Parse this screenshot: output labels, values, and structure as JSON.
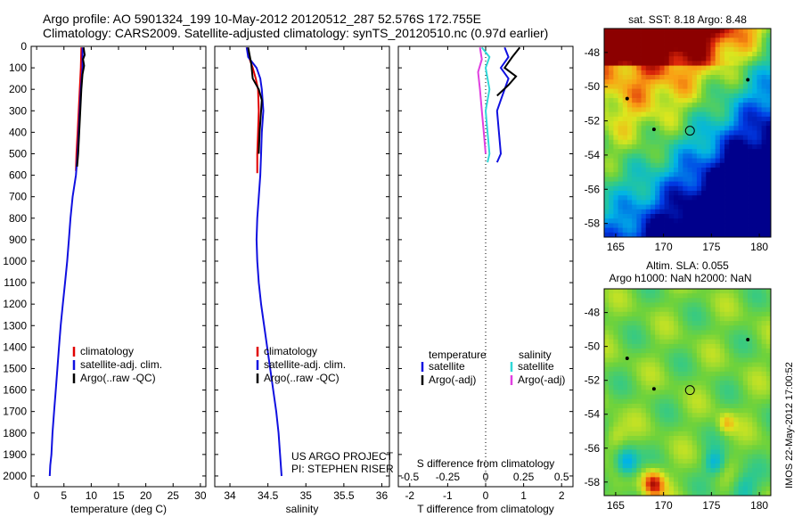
{
  "header": {
    "line1": "Argo profile: AO 5901324_199 10-May-2012 20120512_287 52.576S 172.755E",
    "line2": "Climatology: CARS2009. Satellite-adjusted climatology: synTS_20120510.nc (0.97d earlier)"
  },
  "colors": {
    "climatology": "#e00000",
    "satellite": "#1010e0",
    "argo": "#000000",
    "salinity_satellite": "#30d8d8",
    "salinity_argo": "#e040e0"
  },
  "chart_data": [
    {
      "type": "line",
      "xlabel": "temperature (deg C)",
      "xlim": [
        -1,
        31
      ],
      "xticks": [
        0,
        5,
        10,
        15,
        20,
        25,
        30
      ],
      "ylim": [
        0,
        2050
      ],
      "yticks": [
        0,
        100,
        200,
        300,
        400,
        500,
        600,
        700,
        800,
        900,
        1000,
        1100,
        1200,
        1300,
        1400,
        1500,
        1600,
        1700,
        1800,
        1900,
        2000
      ],
      "legend": [
        "climatology",
        "satellite-adj. clim.",
        "Argo(..raw -QC)"
      ],
      "series": [
        {
          "name": "climatology",
          "color_key": "climatology",
          "points": [
            [
              8.2,
              5
            ],
            [
              8.1,
              100
            ],
            [
              7.9,
              200
            ],
            [
              7.7,
              300
            ],
            [
              7.5,
              400
            ],
            [
              7.3,
              500
            ],
            [
              7.2,
              580
            ]
          ]
        },
        {
          "name": "satellite-adj. clim.",
          "color_key": "satellite",
          "points": [
            [
              8.4,
              5
            ],
            [
              8.4,
              100
            ],
            [
              8.1,
              200
            ],
            [
              7.9,
              300
            ],
            [
              7.7,
              400
            ],
            [
              7.5,
              500
            ],
            [
              7.2,
              600
            ],
            [
              6.6,
              700
            ],
            [
              6.2,
              800
            ],
            [
              5.9,
              900
            ],
            [
              5.6,
              1000
            ],
            [
              5.2,
              1100
            ],
            [
              4.8,
              1200
            ],
            [
              4.4,
              1300
            ],
            [
              4.1,
              1400
            ],
            [
              3.8,
              1500
            ],
            [
              3.5,
              1600
            ],
            [
              3.2,
              1700
            ],
            [
              2.9,
              1800
            ],
            [
              2.7,
              1900
            ],
            [
              2.5,
              1950
            ],
            [
              2.4,
              2000
            ]
          ]
        },
        {
          "name": "Argo(..raw -QC)",
          "color_key": "argo",
          "points": [
            [
              8.6,
              5
            ],
            [
              8.8,
              40
            ],
            [
              8.5,
              60
            ],
            [
              8.7,
              90
            ],
            [
              8.4,
              130
            ],
            [
              8.2,
              200
            ],
            [
              8.0,
              300
            ],
            [
              7.8,
              400
            ],
            [
              7.6,
              500
            ],
            [
              7.4,
              560
            ]
          ]
        }
      ]
    },
    {
      "type": "line",
      "xlabel": "salinity",
      "xlim": [
        33.8,
        36.1
      ],
      "xticks": [
        34,
        34.5,
        35,
        35.5,
        36
      ],
      "ylim": [
        0,
        2050
      ],
      "legend": [
        "climatology",
        "satellite-adj. clim.",
        "Argo(..raw -QC)"
      ],
      "series": [
        {
          "name": "climatology",
          "color_key": "climatology",
          "points": [
            [
              34.22,
              5
            ],
            [
              34.25,
              50
            ],
            [
              34.3,
              100
            ],
            [
              34.34,
              150
            ],
            [
              34.37,
              200
            ],
            [
              34.38,
              300
            ],
            [
              34.37,
              400
            ],
            [
              34.36,
              500
            ],
            [
              34.36,
              590
            ]
          ]
        },
        {
          "name": "satellite-adj. clim.",
          "color_key": "satellite",
          "points": [
            [
              34.22,
              5
            ],
            [
              34.24,
              50
            ],
            [
              34.35,
              100
            ],
            [
              34.4,
              150
            ],
            [
              34.42,
              200
            ],
            [
              34.44,
              300
            ],
            [
              34.42,
              400
            ],
            [
              34.41,
              500
            ],
            [
              34.4,
              600
            ],
            [
              34.38,
              700
            ],
            [
              34.36,
              800
            ],
            [
              34.35,
              900
            ],
            [
              34.36,
              1000
            ],
            [
              34.38,
              1100
            ],
            [
              34.41,
              1200
            ],
            [
              34.45,
              1300
            ],
            [
              34.49,
              1400
            ],
            [
              34.53,
              1500
            ],
            [
              34.57,
              1600
            ],
            [
              34.61,
              1700
            ],
            [
              34.64,
              1800
            ],
            [
              34.66,
              1900
            ],
            [
              34.68,
              2000
            ]
          ]
        },
        {
          "name": "Argo(..raw -QC)",
          "color_key": "argo",
          "points": [
            [
              34.24,
              5
            ],
            [
              34.28,
              80
            ],
            [
              34.3,
              150
            ],
            [
              34.38,
              200
            ],
            [
              34.42,
              250
            ],
            [
              34.41,
              300
            ],
            [
              34.39,
              400
            ],
            [
              34.38,
              500
            ]
          ]
        }
      ]
    },
    {
      "type": "line",
      "xlabel": "T difference from climatology",
      "xlabel2": "S difference from climatology",
      "xlim": [
        -2.3,
        2.3
      ],
      "xticks": [
        -2,
        -1,
        0,
        1,
        2
      ],
      "xticklabels": [
        "-2",
        "-1",
        "0",
        "1",
        "2"
      ],
      "xticks2": [
        -2,
        -1,
        0,
        1,
        2
      ],
      "xticklabels2": [
        "-0.5",
        "-0.25",
        "0",
        "0.25",
        "0.5"
      ],
      "ylim": [
        0,
        2050
      ],
      "legend_headers": [
        "temperature",
        "salinity"
      ],
      "legend": [
        "satellite",
        "Argo(-adj)",
        "satellite",
        "Argo(-adj)"
      ],
      "series": [
        {
          "name": "satellite",
          "color_key": "satellite",
          "points": [
            [
              0.5,
              5
            ],
            [
              0.6,
              50
            ],
            [
              0.4,
              100
            ],
            [
              0.6,
              150
            ],
            [
              0.5,
              200
            ],
            [
              0.4,
              250
            ],
            [
              0.3,
              300
            ],
            [
              0.35,
              400
            ],
            [
              0.4,
              500
            ],
            [
              0.3,
              540
            ]
          ]
        },
        {
          "name": "Argo(-adj)",
          "color_key": "argo",
          "points": [
            [
              0.9,
              5
            ],
            [
              0.7,
              50
            ],
            [
              0.5,
              100
            ],
            [
              0.8,
              140
            ],
            [
              0.6,
              180
            ],
            [
              0.3,
              230
            ]
          ]
        },
        {
          "name": "satellite",
          "color_key": "salinity_satellite",
          "points": [
            [
              -0.1,
              5
            ],
            [
              0.1,
              50
            ],
            [
              0.0,
              100
            ],
            [
              0.1,
              200
            ],
            [
              0.0,
              300
            ],
            [
              0.05,
              400
            ],
            [
              0.1,
              500
            ],
            [
              0.05,
              540
            ]
          ]
        },
        {
          "name": "Argo(-adj)",
          "color_key": "salinity_argo",
          "points": [
            [
              -0.15,
              5
            ],
            [
              -0.1,
              60
            ],
            [
              -0.2,
              120
            ],
            [
              -0.15,
              200
            ],
            [
              -0.1,
              300
            ],
            [
              -0.05,
              400
            ],
            [
              0.0,
              500
            ]
          ]
        }
      ]
    },
    {
      "type": "heatmap",
      "title": "sat. SST: 8.18 Argo: 8.48",
      "xticks": [
        165,
        170,
        175,
        180
      ],
      "yticks": [
        -48,
        -50,
        -52,
        -54,
        -56,
        -58
      ],
      "xlim": [
        163.8,
        181.2
      ],
      "ylim": [
        -58.8,
        -46.6
      ],
      "marker": [
        172.755,
        -52.576
      ],
      "islands": [
        [
          166.2,
          -50.7
        ],
        [
          169.0,
          -52.5
        ],
        [
          178.8,
          -49.6
        ]
      ]
    },
    {
      "type": "heatmap",
      "title": "Altim. SLA: 0.055",
      "subtitle": "Argo h1000: NaN h2000: NaN",
      "xticks": [
        165,
        170,
        175,
        180
      ],
      "yticks": [
        -48,
        -50,
        -52,
        -54,
        -56,
        -58
      ],
      "xlim": [
        163.8,
        181.2
      ],
      "ylim": [
        -58.8,
        -46.6
      ],
      "marker": [
        172.755,
        -52.576
      ],
      "islands": [
        [
          166.2,
          -50.7
        ],
        [
          169.0,
          -52.5
        ],
        [
          178.8,
          -49.6
        ]
      ]
    }
  ],
  "notes": {
    "project": "US ARGO PROJECT",
    "pi": "PI: STEPHEN RISER",
    "imos": "IMOS 22-May-2012 17:00:52"
  }
}
